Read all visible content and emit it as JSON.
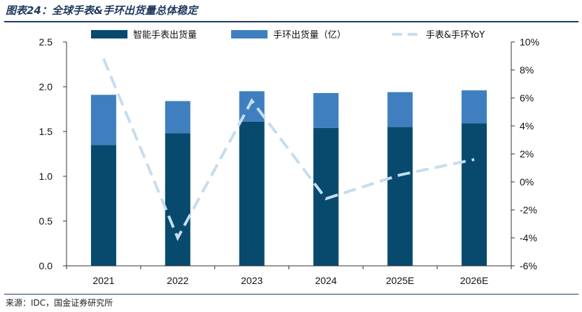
{
  "header": {
    "title": "图表24：全球手表&手环出货量总体稳定"
  },
  "footer": {
    "source": "来源：IDC，国金证券研究所"
  },
  "colors": {
    "watch": "#074A6E",
    "band": "#3F7FBF",
    "yoy": "#C5DDEE",
    "axis": "#333333"
  },
  "chart_data": {
    "type": "bar",
    "stacked": true,
    "categories": [
      "2021",
      "2022",
      "2023",
      "2024",
      "2025E",
      "2026E"
    ],
    "series": [
      {
        "name": "智能手表出货量",
        "type": "bar",
        "axis": "left",
        "values": [
          1.35,
          1.48,
          1.61,
          1.54,
          1.55,
          1.59
        ]
      },
      {
        "name": "手环出货量（亿）",
        "type": "bar",
        "axis": "left",
        "values": [
          0.56,
          0.36,
          0.34,
          0.39,
          0.39,
          0.37
        ]
      },
      {
        "name": "手表&手环YoY",
        "type": "line",
        "style": "dashed",
        "axis": "right",
        "values": [
          8.8,
          -4.0,
          5.8,
          -1.2,
          0.5,
          1.6
        ]
      }
    ],
    "left_axis": {
      "ylim": [
        0,
        2.5
      ],
      "ticks": [
        "0.0",
        "0.5",
        "1.0",
        "1.5",
        "2.0",
        "2.5"
      ]
    },
    "right_axis": {
      "ylim": [
        -6,
        10
      ],
      "ticks": [
        "-6%",
        "-4%",
        "-2%",
        "0%",
        "2%",
        "4%",
        "6%",
        "8%",
        "10%"
      ]
    },
    "legend": {
      "placement": "top"
    }
  }
}
